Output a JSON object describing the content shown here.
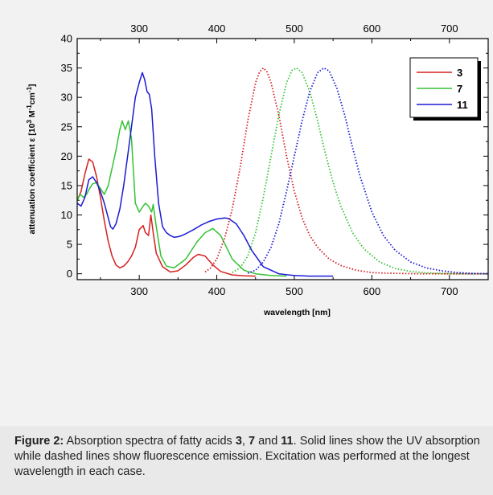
{
  "chart_data": {
    "type": "line",
    "xlabel": "wavelength [nm]",
    "ylabel_parts": {
      "a": "attenuation coefficient ε [10",
      "b": "3",
      "c": " M",
      "d": "-1",
      "e": "cm",
      "f": "-1",
      "g": "]"
    },
    "xlim": [
      220,
      750
    ],
    "ylim": [
      -1,
      40
    ],
    "x_ticks": [
      300,
      400,
      500,
      600,
      700
    ],
    "x_tick_labels": [
      "300",
      "400",
      "500",
      "600",
      "700"
    ],
    "top_tick_labels": [
      "300",
      "400",
      "500",
      "600",
      "700"
    ],
    "y_ticks": [
      0,
      5,
      10,
      15,
      20,
      25,
      30,
      35,
      40
    ],
    "y_tick_labels": [
      "0",
      "5",
      "10",
      "15",
      "20",
      "25",
      "30",
      "35",
      "40"
    ],
    "legend": [
      "3",
      "7",
      "11"
    ],
    "colors": {
      "3": "#d62020",
      "7": "#33c233",
      "11": "#1a1ad6"
    },
    "series": [
      {
        "name": "3",
        "kind": "absorption",
        "color": "#d62020",
        "x": [
          220,
          225,
          230,
          235,
          240,
          245,
          250,
          255,
          260,
          265,
          270,
          275,
          280,
          285,
          290,
          295,
          300,
          305,
          308,
          312,
          315,
          318,
          322,
          330,
          340,
          350,
          360,
          370,
          376,
          385,
          395,
          405,
          420,
          435,
          450
        ],
        "y": [
          12.5,
          14.0,
          17.0,
          19.5,
          19.0,
          16.5,
          13.0,
          9.0,
          5.5,
          3.0,
          1.5,
          1.0,
          1.3,
          2.0,
          3.0,
          4.5,
          7.5,
          8.2,
          7.0,
          6.5,
          10.0,
          7.0,
          3.5,
          1.2,
          0.3,
          0.5,
          1.5,
          2.8,
          3.3,
          3.0,
          1.5,
          0.4,
          -0.2,
          -0.35,
          -0.4
        ]
      },
      {
        "name": "7",
        "kind": "absorption",
        "color": "#33c233",
        "x": [
          220,
          224,
          228,
          232,
          236,
          240,
          245,
          250,
          255,
          260,
          265,
          270,
          275,
          278,
          282,
          286,
          290,
          295,
          300,
          305,
          308,
          312,
          316,
          318,
          322,
          328,
          335,
          345,
          360,
          375,
          385,
          395,
          405,
          420,
          435,
          450,
          470,
          490
        ],
        "y": [
          12.5,
          13.5,
          13.0,
          13.5,
          14.5,
          15.3,
          15.5,
          14.5,
          13.5,
          15.0,
          18.0,
          21.0,
          24.5,
          26.0,
          24.5,
          26.0,
          23.0,
          12.0,
          10.5,
          11.5,
          12.0,
          11.5,
          10.5,
          11.8,
          8.0,
          3.0,
          1.3,
          1.0,
          2.5,
          5.5,
          7.0,
          7.7,
          6.5,
          2.5,
          0.6,
          0.0,
          -0.3,
          -0.4
        ]
      },
      {
        "name": "11",
        "kind": "absorption",
        "color": "#1a1ad6",
        "x": [
          220,
          225,
          230,
          235,
          240,
          245,
          250,
          255,
          260,
          263,
          266,
          270,
          275,
          280,
          285,
          290,
          295,
          300,
          304,
          307,
          310,
          313,
          316,
          320,
          325,
          330,
          335,
          340,
          345,
          350,
          355,
          360,
          370,
          380,
          390,
          400,
          410,
          415,
          425,
          435,
          445,
          460,
          480,
          500,
          520,
          550
        ],
        "y": [
          12.0,
          11.5,
          13.0,
          16.0,
          16.5,
          15.5,
          14.0,
          12.0,
          9.5,
          8.0,
          7.6,
          8.5,
          11.0,
          15.0,
          20.0,
          25.0,
          30.0,
          32.5,
          34.2,
          33.0,
          31.0,
          30.5,
          28.0,
          20.0,
          12.0,
          8.0,
          7.0,
          6.5,
          6.2,
          6.3,
          6.5,
          6.8,
          7.5,
          8.3,
          8.9,
          9.3,
          9.5,
          9.4,
          8.5,
          6.5,
          4.0,
          1.2,
          0.0,
          -0.3,
          -0.4,
          -0.4
        ]
      },
      {
        "name": "3",
        "kind": "emission",
        "color": "#d62020",
        "x": [
          385,
          392,
          400,
          410,
          420,
          430,
          440,
          450,
          455,
          460,
          465,
          470,
          480,
          490,
          500,
          510,
          520,
          530,
          545,
          560,
          580,
          600,
          620,
          640,
          660,
          680,
          700,
          720,
          750
        ],
        "y": [
          0.3,
          1.0,
          2.5,
          6.0,
          11.0,
          18.0,
          26.0,
          32.5,
          34.3,
          35.0,
          34.3,
          32.5,
          27.0,
          20.0,
          14.0,
          9.5,
          6.5,
          4.5,
          2.5,
          1.4,
          0.6,
          0.2,
          0.1,
          0.05,
          0.0,
          0.0,
          0.0,
          0.0,
          0.0
        ]
      },
      {
        "name": "7",
        "kind": "emission",
        "color": "#33c233",
        "x": [
          420,
          430,
          440,
          450,
          460,
          470,
          480,
          490,
          497,
          503,
          510,
          520,
          530,
          540,
          550,
          560,
          575,
          590,
          610,
          630,
          650,
          670,
          690,
          710,
          730,
          750
        ],
        "y": [
          0.2,
          1.0,
          3.0,
          7.0,
          13.0,
          20.0,
          27.0,
          32.5,
          34.6,
          35.0,
          34.2,
          31.0,
          26.0,
          20.5,
          15.5,
          11.5,
          7.0,
          4.2,
          2.0,
          0.9,
          0.4,
          0.15,
          0.05,
          0.0,
          0.0,
          0.0
        ]
      },
      {
        "name": "11",
        "kind": "emission",
        "color": "#1a1ad6",
        "x": [
          440,
          450,
          460,
          470,
          480,
          490,
          500,
          510,
          520,
          530,
          538,
          545,
          555,
          565,
          575,
          585,
          600,
          615,
          630,
          650,
          670,
          690,
          710,
          730,
          750
        ],
        "y": [
          0.1,
          0.6,
          2.0,
          4.5,
          8.5,
          14.0,
          20.0,
          26.0,
          31.0,
          34.2,
          35.0,
          34.5,
          31.5,
          27.0,
          21.5,
          16.5,
          10.5,
          6.5,
          4.0,
          2.0,
          1.0,
          0.5,
          0.2,
          0.05,
          0.0
        ]
      }
    ]
  },
  "caption": {
    "label": "Figure 2:",
    "text_1": " Absorption spectra of fatty acids ",
    "c1": "3",
    "text_2": ", ",
    "c2": "7",
    "text_3": " and ",
    "c3": "11",
    "text_4": ". Solid lines show the UV absorption while dashed lines show fluorescence emission. Excitation was performed at the longest wavelength in each case."
  }
}
